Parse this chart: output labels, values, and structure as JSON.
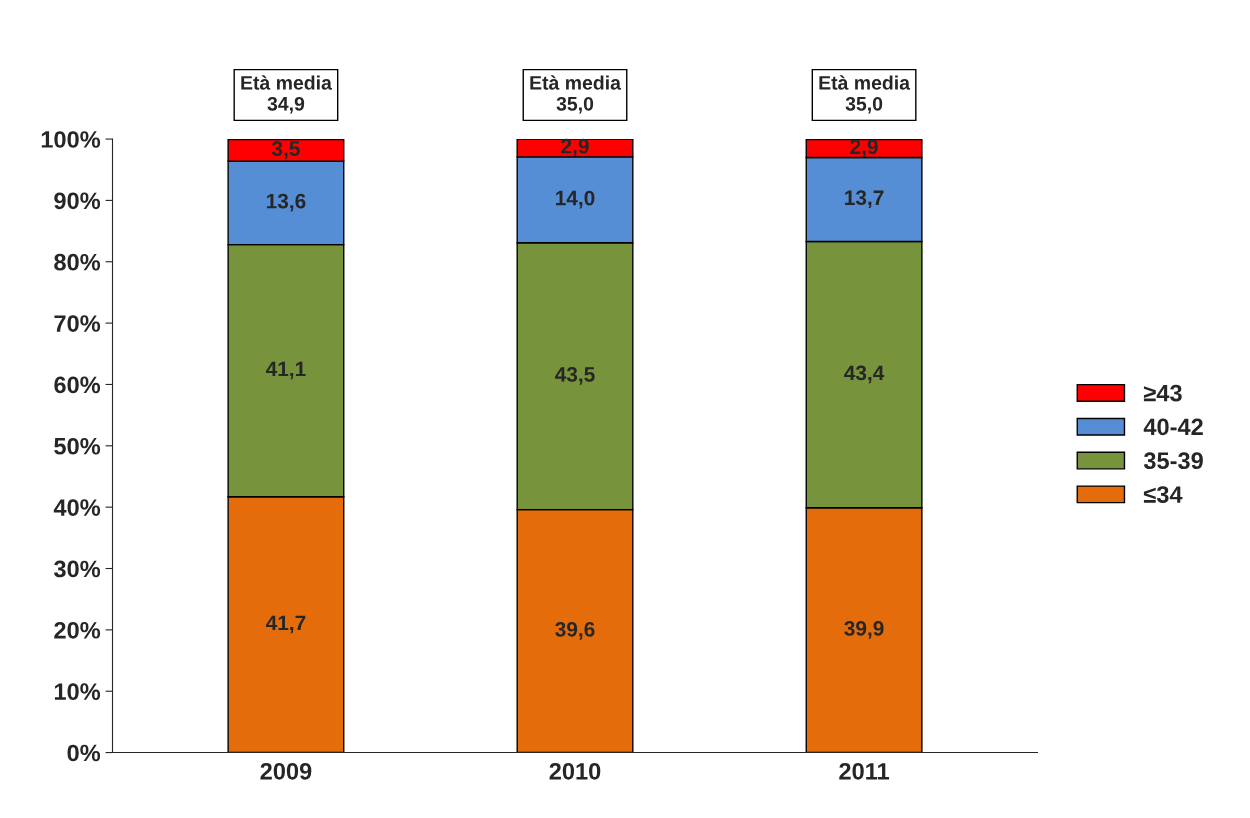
{
  "chart_data": {
    "type": "bar",
    "stacked": true,
    "categories": [
      "2009",
      "2010",
      "2011"
    ],
    "series": [
      {
        "name": "≤34",
        "color": "#e46c0a",
        "values": [
          41.7,
          39.6,
          39.9
        ],
        "value_labels": [
          "41,7",
          "39,6",
          "39,9"
        ]
      },
      {
        "name": "35-39",
        "color": "#77933c",
        "values": [
          41.1,
          43.5,
          43.4
        ],
        "value_labels": [
          "41,1",
          "43,5",
          "43,4"
        ]
      },
      {
        "name": "40-42",
        "color": "#558ed5",
        "values": [
          13.6,
          14.0,
          13.7
        ],
        "value_labels": [
          "13,6",
          "14,0",
          "13,7"
        ]
      },
      {
        "name": "≥43",
        "color": "#ff0000",
        "values": [
          3.5,
          2.9,
          2.9
        ],
        "value_labels": [
          "3,5",
          "2,9",
          "2,9"
        ]
      }
    ],
    "ylim": [
      0,
      100
    ],
    "yticks": [
      {
        "value": 0,
        "label": "0%"
      },
      {
        "value": 10,
        "label": "10%"
      },
      {
        "value": 20,
        "label": "20%"
      },
      {
        "value": 30,
        "label": "30%"
      },
      {
        "value": 40,
        "label": "40%"
      },
      {
        "value": 50,
        "label": "50%"
      },
      {
        "value": 60,
        "label": "60%"
      },
      {
        "value": 70,
        "label": "70%"
      },
      {
        "value": 80,
        "label": "80%"
      },
      {
        "value": 90,
        "label": "90%"
      },
      {
        "value": 100,
        "label": "100%"
      }
    ],
    "annotations": [
      "Età media\n34,9",
      "Età media\n35,0",
      "Età media\n35,0"
    ],
    "legend": "right",
    "grid": false
  }
}
